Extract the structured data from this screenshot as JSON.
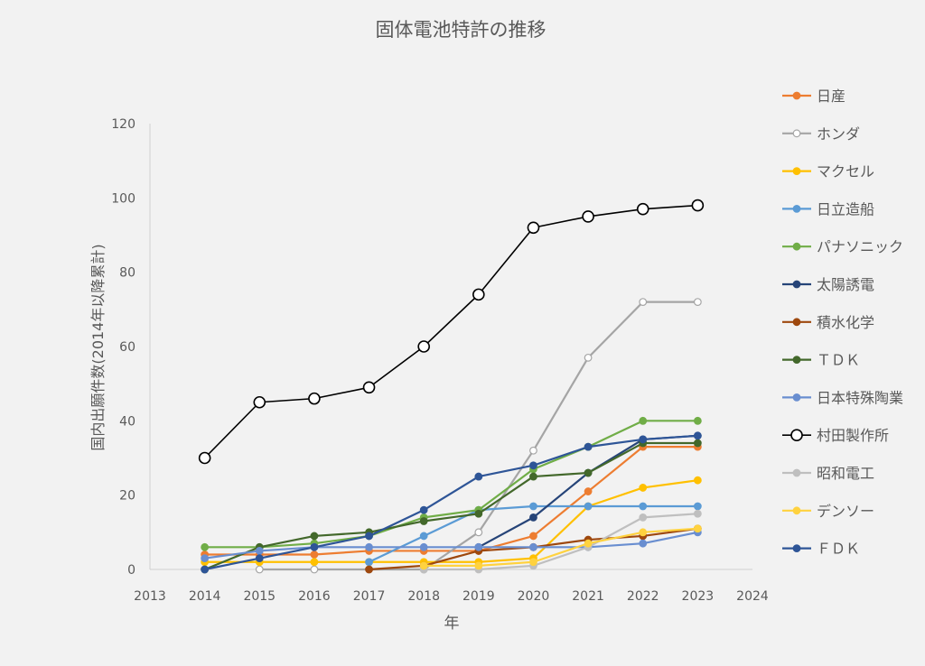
{
  "chart_data": {
    "type": "line",
    "title": "固体電池特許の推移",
    "xlabel": "年",
    "ylabel": "国内出願件数(2014年以降累計)",
    "xlim": [
      2013,
      2024
    ],
    "ylim": [
      0,
      120
    ],
    "x_ticks": [
      "2013",
      "2014",
      "2015",
      "2016",
      "2017",
      "2018",
      "2019",
      "2020",
      "2021",
      "2022",
      "2023",
      "2024"
    ],
    "y_ticks": [
      "0",
      "20",
      "40",
      "60",
      "80",
      "100",
      "120"
    ],
    "grid": false,
    "legend_position": "right",
    "x": [
      2014,
      2015,
      2016,
      2017,
      2018,
      2019,
      2020,
      2021,
      2022,
      2023
    ],
    "series": [
      {
        "name": "日産",
        "color": "#ED7D31",
        "marker": "filled",
        "values": [
          4,
          4,
          4,
          5,
          5,
          5,
          9,
          21,
          33,
          33
        ]
      },
      {
        "name": "ホンダ",
        "color": "#A5A5A5",
        "marker": "hollow",
        "values": [
          null,
          0,
          0,
          0,
          0,
          10,
          32,
          57,
          72,
          72
        ]
      },
      {
        "name": "マクセル",
        "color": "#FFC000",
        "marker": "filled",
        "values": [
          2,
          2,
          2,
          2,
          2,
          2,
          3,
          17,
          22,
          24
        ]
      },
      {
        "name": "日立造船",
        "color": "#5B9BD5",
        "marker": "filled",
        "values": [
          null,
          null,
          null,
          2,
          9,
          16,
          17,
          17,
          17,
          17
        ]
      },
      {
        "name": "パナソニック",
        "color": "#70AD47",
        "marker": "filled",
        "values": [
          6,
          6,
          7,
          9,
          14,
          16,
          27,
          33,
          40,
          40
        ]
      },
      {
        "name": "太陽誘電",
        "color": "#264478",
        "marker": "filled",
        "values": [
          null,
          null,
          null,
          null,
          null,
          6,
          14,
          26,
          35,
          36
        ]
      },
      {
        "name": "積水化学",
        "color": "#9E480E",
        "marker": "filled",
        "values": [
          null,
          null,
          null,
          0,
          1,
          5,
          6,
          8,
          9,
          11
        ]
      },
      {
        "name": "ＴＤＫ",
        "color": "#43682B",
        "marker": "filled",
        "values": [
          0,
          6,
          9,
          10,
          13,
          15,
          25,
          26,
          34,
          34
        ]
      },
      {
        "name": "日本特殊陶業",
        "color": "#698ED0",
        "marker": "filled",
        "values": [
          3,
          5,
          6,
          6,
          6,
          6,
          6,
          6,
          7,
          10
        ]
      },
      {
        "name": "村田製作所",
        "color": "#000000",
        "marker": "hollow-large",
        "values": [
          30,
          45,
          46,
          49,
          60,
          74,
          92,
          95,
          97,
          98
        ]
      },
      {
        "name": "昭和電工",
        "color": "#BFBFBF",
        "marker": "filled",
        "values": [
          null,
          null,
          null,
          null,
          0,
          0,
          1,
          6,
          14,
          15
        ]
      },
      {
        "name": "デンソー",
        "color": "#FFD23F",
        "marker": "filled",
        "values": [
          null,
          null,
          null,
          null,
          1,
          1,
          2,
          7,
          10,
          11
        ]
      },
      {
        "name": "ＦＤＫ",
        "color": "#2E5597",
        "marker": "filled",
        "values": [
          0,
          3,
          6,
          9,
          16,
          25,
          28,
          33,
          35,
          36
        ]
      }
    ]
  }
}
